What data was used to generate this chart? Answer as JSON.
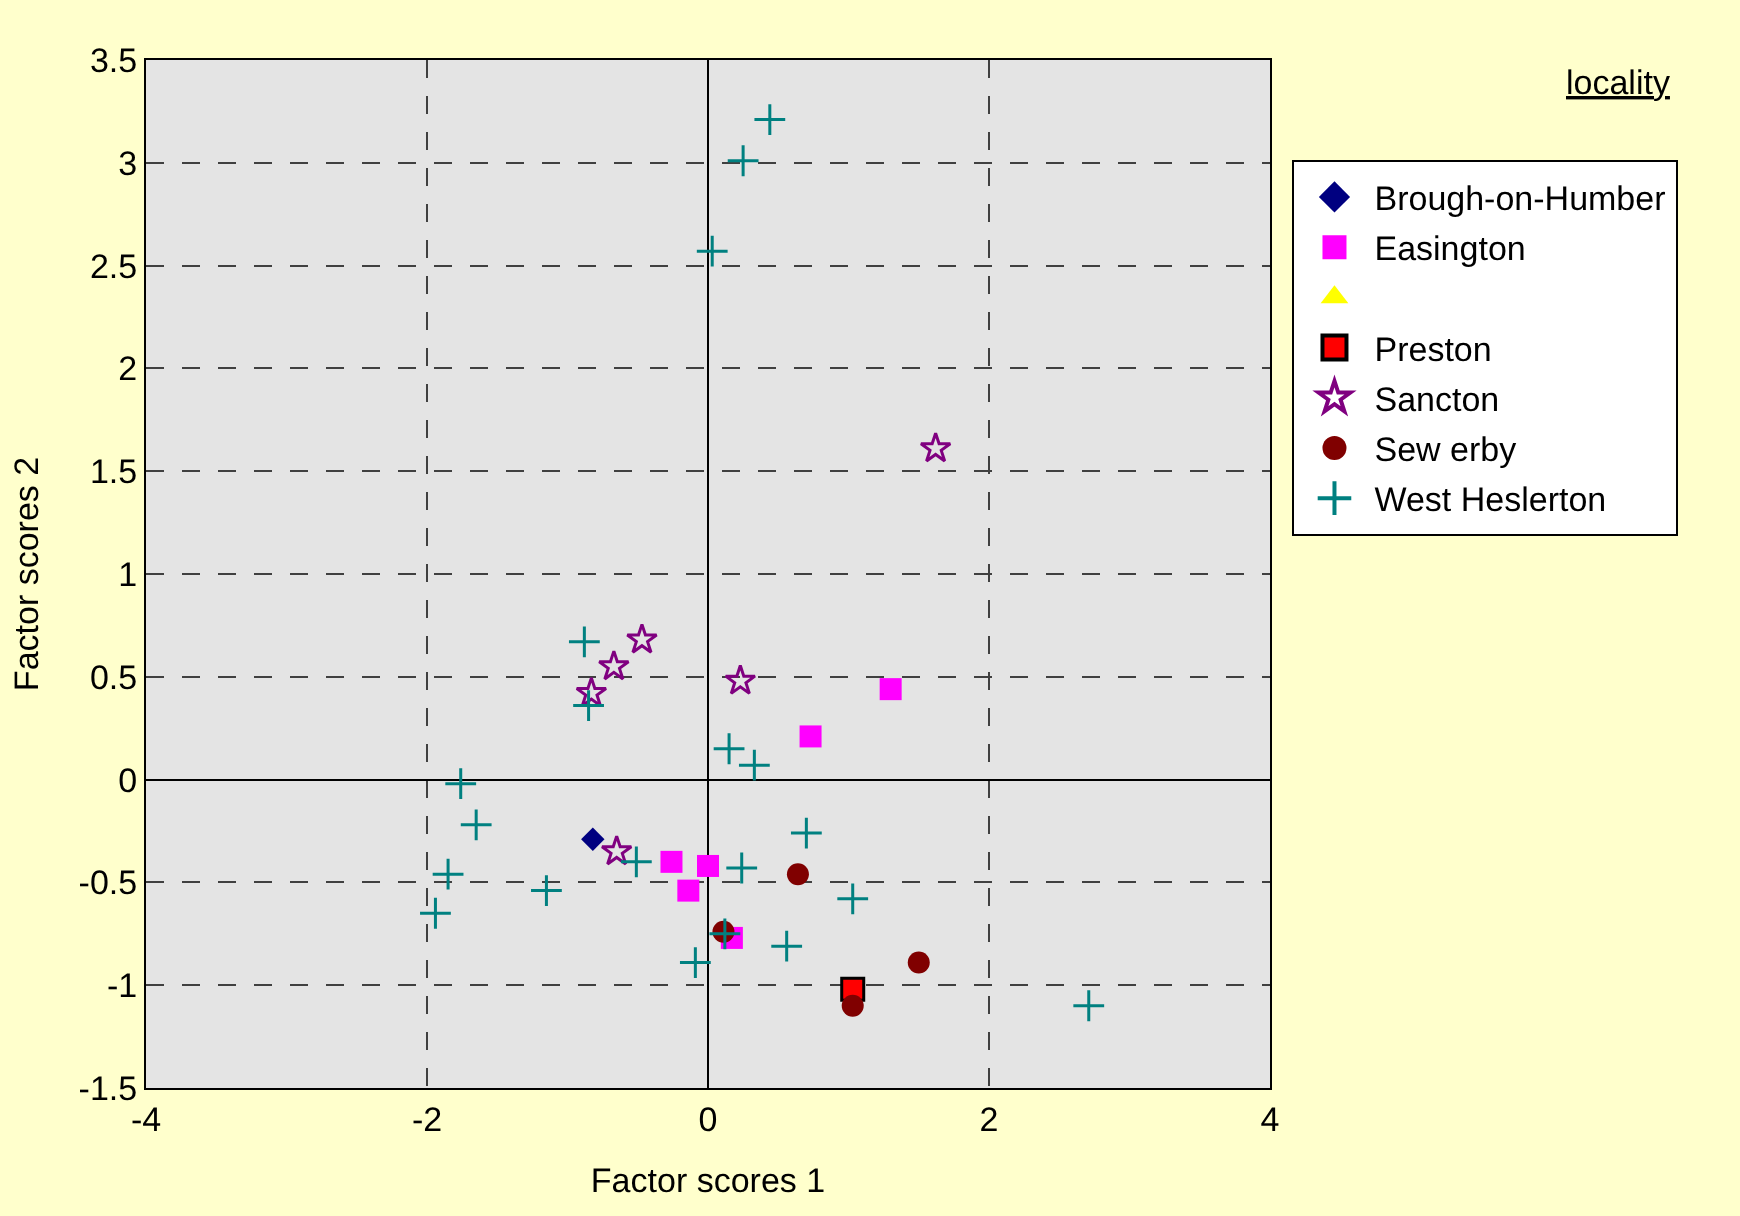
{
  "chart_data": {
    "type": "scatter",
    "xlabel": "Factor scores 1",
    "ylabel": "Factor scores 2",
    "legend_title": "locality",
    "xlim": [
      -4,
      4
    ],
    "xticks": [
      -4,
      -2,
      0,
      2,
      4
    ],
    "ylim": [
      -1.5,
      3.5
    ],
    "yticks": [
      -1.5,
      -1,
      -0.5,
      0,
      0.5,
      1,
      1.5,
      2,
      2.5,
      3,
      3.5
    ],
    "grid": true,
    "legend": "right",
    "series": [
      {
        "name": "Brough-on-Humber",
        "color": "#000080",
        "marker": "diamond",
        "x": [
          -0.82
        ],
        "values": [
          -0.29
        ]
      },
      {
        "name": "Easington",
        "color": "#ff00ff",
        "marker": "square",
        "x": [
          1.3,
          0.73,
          -0.26,
          0.0,
          -0.14,
          0.17
        ],
        "values": [
          0.44,
          0.21,
          -0.4,
          -0.42,
          -0.54,
          -0.77
        ]
      },
      {
        "color": "#ffff00",
        "marker": "triangle"
      },
      {
        "name": "Preston",
        "color": "#ff0000",
        "marker": "square",
        "x": [
          1.03
        ],
        "values": [
          -1.02
        ]
      },
      {
        "name": "Sancton",
        "color": "#800080",
        "marker": "star",
        "x": [
          1.62,
          -0.47,
          -0.67,
          -0.83,
          0.23,
          -0.65
        ],
        "values": [
          1.61,
          0.68,
          0.55,
          0.42,
          0.48,
          -0.35
        ]
      },
      {
        "name": "Sew erby",
        "color": "#800000",
        "marker": "circle",
        "x": [
          0.64,
          0.11,
          1.5,
          1.03
        ],
        "values": [
          -0.46,
          -0.74,
          -0.89,
          -1.1
        ]
      },
      {
        "name": "West Heslerton",
        "color": "#008080",
        "marker": "cross",
        "x": [
          0.44,
          0.25,
          0.03,
          -0.88,
          -0.85,
          0.15,
          0.33,
          -1.76,
          -1.65,
          -1.85,
          -1.94,
          -1.15,
          -0.51,
          0.24,
          0.7,
          1.03,
          0.56,
          -0.09,
          0.12,
          2.71
        ],
        "values": [
          3.21,
          3.01,
          2.57,
          0.67,
          0.36,
          0.15,
          0.07,
          -0.02,
          -0.22,
          -0.46,
          -0.65,
          -0.54,
          -0.4,
          -0.43,
          -0.26,
          -0.58,
          -0.81,
          -0.89,
          -0.75,
          -1.1
        ]
      }
    ]
  }
}
